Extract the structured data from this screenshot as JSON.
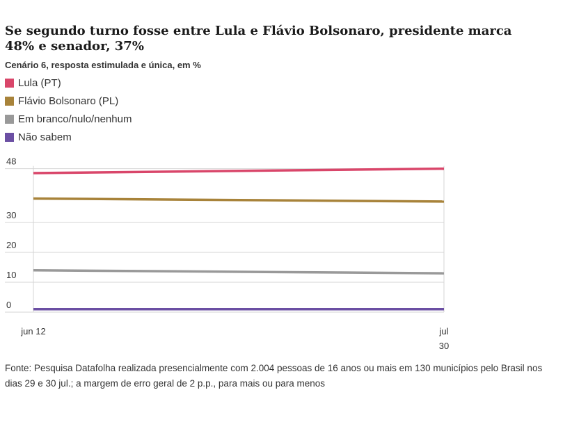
{
  "title": "Se segundo turno fosse entre Lula e Flávio Bolsonaro, presidente marca 48% e senador, 37%",
  "subtitle": "Cenário 6, resposta estimulada e única, em %",
  "footnote": "Fonte: Pesquisa Datafolha realizada presencialmente com 2.004 pessoas de 16 anos ou mais em 130 municípios pelo Brasil nos dias 29 e 30 jul.; a margem de erro geral de 2 p.p., para mais ou para menos",
  "chart_data": {
    "type": "line",
    "title": "Se segundo turno fosse entre Lula e Flávio Bolsonaro, presidente marca 48% e senador, 37%",
    "subtitle": "Cenário 6, resposta estimulada e única, em %",
    "x": [
      "jun 12",
      "jul 30"
    ],
    "x_tick_labels": [
      [
        "jun 12"
      ],
      [
        "jul",
        "30"
      ]
    ],
    "y_ticks": [
      0,
      10,
      20,
      30,
      48
    ],
    "ylim": [
      0,
      48
    ],
    "grid": true,
    "legend_position": "top-left",
    "series": [
      {
        "name": "Lula (PT)",
        "color": "#d9466a",
        "values": [
          46.5,
          48
        ]
      },
      {
        "name": "Flávio Bolsonaro (PL)",
        "color": "#a8833a",
        "values": [
          38,
          37
        ]
      },
      {
        "name": "Em branco/nulo/nenhum",
        "color": "#999999",
        "values": [
          14,
          13
        ]
      },
      {
        "name": "Não sabem",
        "color": "#6b4fa3",
        "values": [
          1,
          1
        ]
      }
    ]
  }
}
